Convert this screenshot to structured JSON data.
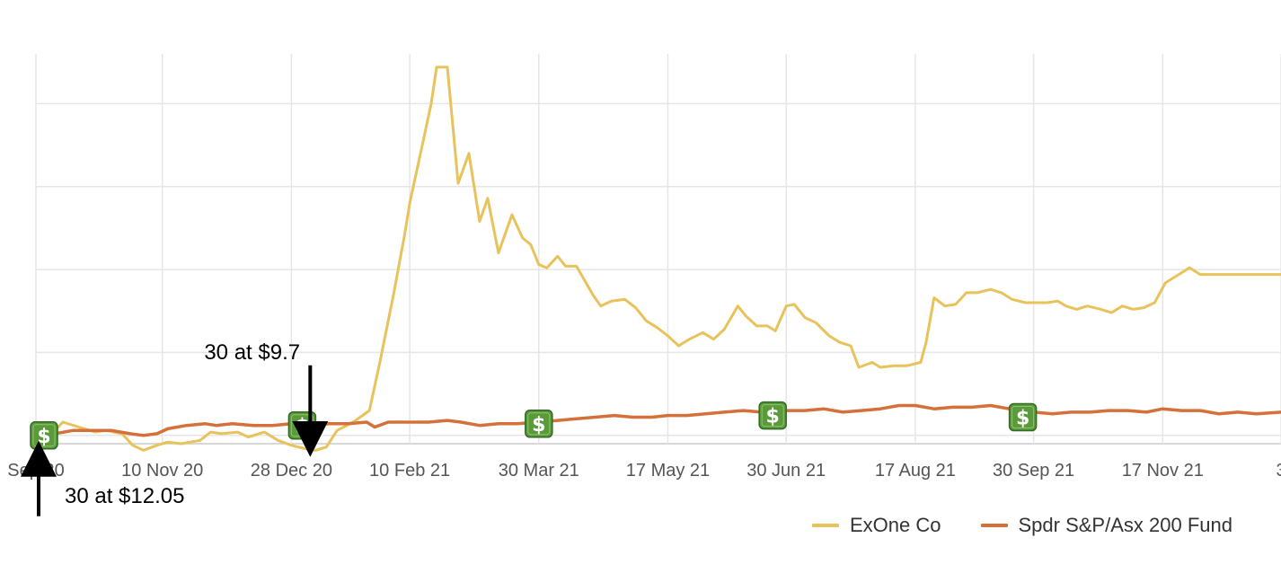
{
  "chart_data": {
    "type": "line",
    "title": "",
    "xlabel": "",
    "ylabel": "",
    "x_range": [
      "2020-09-24",
      "2021-12-31"
    ],
    "y_range": [
      -5,
      230
    ],
    "y_ticks": [
      0,
      50,
      100,
      150,
      200
    ],
    "y_tick_labels_visible": false,
    "grid": true,
    "legend_position": "bottom-right",
    "x_ticks": [
      {
        "date": "2020-09-24",
        "label": "Sep 20"
      },
      {
        "date": "2020-11-10",
        "label": "10 Nov 20"
      },
      {
        "date": "2020-12-28",
        "label": "28 Dec 20"
      },
      {
        "date": "2021-02-10",
        "label": "10 Feb 21"
      },
      {
        "date": "2021-03-30",
        "label": "30 Mar 21"
      },
      {
        "date": "2021-05-17",
        "label": "17 May 21"
      },
      {
        "date": "2021-06-30",
        "label": "30 Jun 21"
      },
      {
        "date": "2021-08-17",
        "label": "17 Aug 21"
      },
      {
        "date": "2021-09-30",
        "label": "30 Sep 21"
      },
      {
        "date": "2021-11-17",
        "label": "17 Nov 21"
      },
      {
        "date": "2021-12-31",
        "label": "3"
      }
    ],
    "series": [
      {
        "name": "ExOne Co",
        "color": "#e8c25a",
        "points": [
          [
            "2020-09-24",
            0
          ],
          [
            "2020-09-30",
            1
          ],
          [
            "2020-10-04",
            8
          ],
          [
            "2020-10-10",
            5
          ],
          [
            "2020-10-16",
            2
          ],
          [
            "2020-10-20",
            3
          ],
          [
            "2020-10-26",
            1
          ],
          [
            "2020-10-30",
            -6
          ],
          [
            "2020-11-03",
            -9
          ],
          [
            "2020-11-08",
            -6
          ],
          [
            "2020-11-12",
            -4
          ],
          [
            "2020-11-17",
            -5
          ],
          [
            "2020-11-24",
            -3
          ],
          [
            "2020-11-28",
            2
          ],
          [
            "2020-12-02",
            1
          ],
          [
            "2020-12-08",
            2
          ],
          [
            "2020-12-12",
            -1
          ],
          [
            "2020-12-18",
            2
          ],
          [
            "2020-12-23",
            -3
          ],
          [
            "2020-12-28",
            -6
          ],
          [
            "2021-01-02",
            -8
          ],
          [
            "2021-01-06",
            -9
          ],
          [
            "2021-01-10",
            -7
          ],
          [
            "2021-01-14",
            3
          ],
          [
            "2021-01-20",
            8
          ],
          [
            "2021-01-26",
            15
          ],
          [
            "2021-01-30",
            45
          ],
          [
            "2021-02-04",
            85
          ],
          [
            "2021-02-08",
            120
          ],
          [
            "2021-02-10",
            140
          ],
          [
            "2021-02-14",
            170
          ],
          [
            "2021-02-18",
            200
          ],
          [
            "2021-02-20",
            222
          ],
          [
            "2021-02-24",
            222
          ],
          [
            "2021-02-28",
            152
          ],
          [
            "2021-03-04",
            170
          ],
          [
            "2021-03-08",
            129
          ],
          [
            "2021-03-11",
            143
          ],
          [
            "2021-03-15",
            110
          ],
          [
            "2021-03-20",
            133
          ],
          [
            "2021-03-24",
            119
          ],
          [
            "2021-03-27",
            115
          ],
          [
            "2021-03-30",
            103
          ],
          [
            "2021-04-02",
            101
          ],
          [
            "2021-04-06",
            108
          ],
          [
            "2021-04-09",
            102
          ],
          [
            "2021-04-13",
            102
          ],
          [
            "2021-04-19",
            85
          ],
          [
            "2021-04-22",
            78
          ],
          [
            "2021-04-26",
            81
          ],
          [
            "2021-05-01",
            82
          ],
          [
            "2021-05-05",
            77
          ],
          [
            "2021-05-09",
            69
          ],
          [
            "2021-05-13",
            65
          ],
          [
            "2021-05-17",
            60
          ],
          [
            "2021-05-21",
            54
          ],
          [
            "2021-05-25",
            58
          ],
          [
            "2021-05-30",
            62
          ],
          [
            "2021-06-03",
            58
          ],
          [
            "2021-06-07",
            64
          ],
          [
            "2021-06-12",
            78
          ],
          [
            "2021-06-15",
            72
          ],
          [
            "2021-06-19",
            66
          ],
          [
            "2021-06-23",
            66
          ],
          [
            "2021-06-26",
            63
          ],
          [
            "2021-06-30",
            78
          ],
          [
            "2021-07-03",
            79
          ],
          [
            "2021-07-07",
            71
          ],
          [
            "2021-07-11",
            68
          ],
          [
            "2021-07-16",
            60
          ],
          [
            "2021-07-20",
            56
          ],
          [
            "2021-07-24",
            54
          ],
          [
            "2021-07-27",
            41
          ],
          [
            "2021-08-01",
            44
          ],
          [
            "2021-08-04",
            41
          ],
          [
            "2021-08-09",
            42
          ],
          [
            "2021-08-14",
            42
          ],
          [
            "2021-08-19",
            44
          ],
          [
            "2021-08-21",
            56
          ],
          [
            "2021-08-24",
            83
          ],
          [
            "2021-08-28",
            78
          ],
          [
            "2021-09-01",
            79
          ],
          [
            "2021-09-05",
            86
          ],
          [
            "2021-09-09",
            86
          ],
          [
            "2021-09-14",
            88
          ],
          [
            "2021-09-18",
            86
          ],
          [
            "2021-09-22",
            82
          ],
          [
            "2021-09-27",
            80
          ],
          [
            "2021-10-01",
            80
          ],
          [
            "2021-10-05",
            80
          ],
          [
            "2021-10-09",
            81
          ],
          [
            "2021-10-12",
            78
          ],
          [
            "2021-10-16",
            76
          ],
          [
            "2021-10-20",
            78
          ],
          [
            "2021-10-25",
            76
          ],
          [
            "2021-10-29",
            74
          ],
          [
            "2021-11-02",
            78
          ],
          [
            "2021-11-06",
            76
          ],
          [
            "2021-11-10",
            77
          ],
          [
            "2021-11-14",
            80
          ],
          [
            "2021-11-18",
            92
          ],
          [
            "2021-11-23",
            97
          ],
          [
            "2021-11-27",
            101
          ],
          [
            "2021-12-01",
            97
          ],
          [
            "2021-12-31",
            97
          ]
        ]
      },
      {
        "name": "Spdr S&P/Asx 200 Fund",
        "color": "#d5703a",
        "points": [
          [
            "2020-09-24",
            0
          ],
          [
            "2020-10-01",
            1
          ],
          [
            "2020-10-08",
            3
          ],
          [
            "2020-10-15",
            3
          ],
          [
            "2020-10-22",
            3
          ],
          [
            "2020-10-29",
            1
          ],
          [
            "2020-11-03",
            0
          ],
          [
            "2020-11-08",
            1
          ],
          [
            "2020-11-12",
            4
          ],
          [
            "2020-11-19",
            6
          ],
          [
            "2020-11-26",
            7
          ],
          [
            "2020-11-30",
            6
          ],
          [
            "2020-12-06",
            7
          ],
          [
            "2020-12-14",
            6
          ],
          [
            "2020-12-21",
            6
          ],
          [
            "2020-12-28",
            7
          ],
          [
            "2021-01-04",
            6
          ],
          [
            "2021-01-11",
            7
          ],
          [
            "2021-01-18",
            7
          ],
          [
            "2021-01-25",
            8
          ],
          [
            "2021-01-28",
            5
          ],
          [
            "2021-02-02",
            8
          ],
          [
            "2021-02-10",
            8
          ],
          [
            "2021-02-17",
            8
          ],
          [
            "2021-02-24",
            9
          ],
          [
            "2021-03-01",
            8
          ],
          [
            "2021-03-08",
            6
          ],
          [
            "2021-03-15",
            7
          ],
          [
            "2021-03-22",
            7
          ],
          [
            "2021-03-30",
            8
          ],
          [
            "2021-04-06",
            9
          ],
          [
            "2021-04-13",
            10
          ],
          [
            "2021-04-20",
            11
          ],
          [
            "2021-04-27",
            12
          ],
          [
            "2021-05-04",
            11
          ],
          [
            "2021-05-11",
            11
          ],
          [
            "2021-05-17",
            12
          ],
          [
            "2021-05-24",
            12
          ],
          [
            "2021-05-31",
            13
          ],
          [
            "2021-06-07",
            14
          ],
          [
            "2021-06-14",
            15
          ],
          [
            "2021-06-21",
            14
          ],
          [
            "2021-06-30",
            15
          ],
          [
            "2021-07-07",
            15
          ],
          [
            "2021-07-14",
            16
          ],
          [
            "2021-07-21",
            14
          ],
          [
            "2021-07-28",
            15
          ],
          [
            "2021-08-04",
            16
          ],
          [
            "2021-08-11",
            18
          ],
          [
            "2021-08-17",
            18
          ],
          [
            "2021-08-24",
            16
          ],
          [
            "2021-08-31",
            17
          ],
          [
            "2021-09-07",
            17
          ],
          [
            "2021-09-14",
            18
          ],
          [
            "2021-09-21",
            16
          ],
          [
            "2021-09-30",
            14
          ],
          [
            "2021-10-07",
            13
          ],
          [
            "2021-10-14",
            14
          ],
          [
            "2021-10-21",
            14
          ],
          [
            "2021-10-28",
            15
          ],
          [
            "2021-11-04",
            15
          ],
          [
            "2021-11-11",
            14
          ],
          [
            "2021-11-17",
            16
          ],
          [
            "2021-11-24",
            15
          ],
          [
            "2021-12-01",
            15
          ],
          [
            "2021-12-08",
            13
          ],
          [
            "2021-12-15",
            14
          ],
          [
            "2021-12-22",
            13
          ],
          [
            "2021-12-31",
            14
          ]
        ]
      }
    ],
    "purchase_markers": [
      {
        "date": "2020-09-27",
        "value": 0
      },
      {
        "date": "2021-01-01",
        "value": 6
      },
      {
        "date": "2021-03-30",
        "value": 7
      },
      {
        "date": "2021-06-25",
        "value": 12
      },
      {
        "date": "2021-09-26",
        "value": 11
      }
    ],
    "marker_icon": "dollar-bill-icon",
    "marker_color": "#5a9a3a",
    "annotations": [
      {
        "date": "2020-09-24",
        "value": 0,
        "text": "30 at $12.05",
        "arrow": "up"
      },
      {
        "date": "2021-01-04",
        "value": 0,
        "text": "30 at $9.7",
        "arrow": "down"
      }
    ]
  },
  "legend": {
    "items": [
      {
        "label": "ExOne Co",
        "color": "#e8c25a"
      },
      {
        "label": "Spdr S&P/Asx 200 Fund",
        "color": "#d5703a"
      }
    ]
  }
}
